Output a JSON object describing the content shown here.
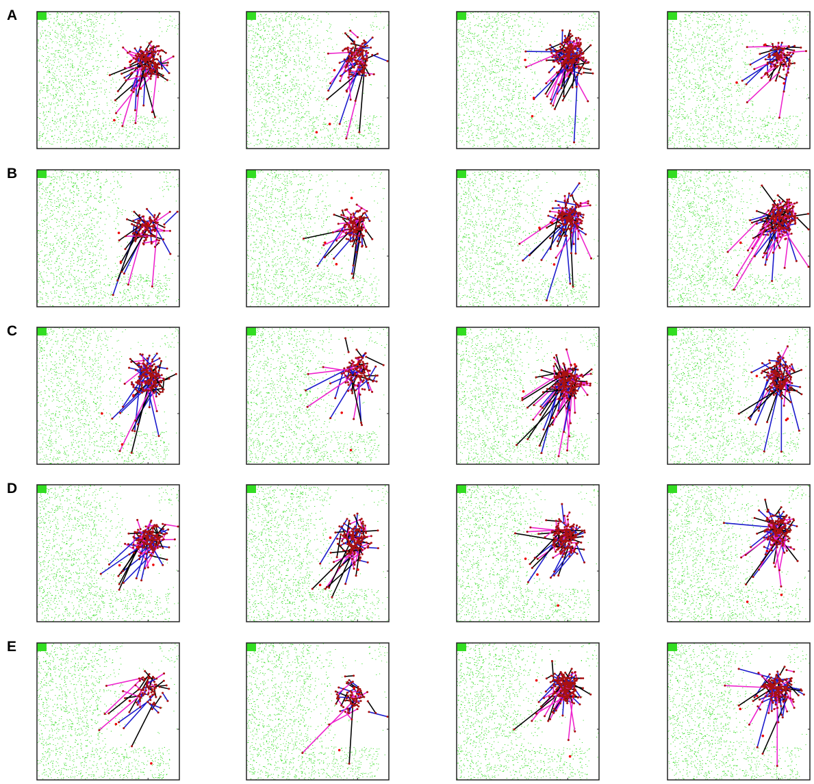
{
  "figure": {
    "rows": [
      "A",
      "B",
      "C",
      "D",
      "E"
    ]
  }
}
